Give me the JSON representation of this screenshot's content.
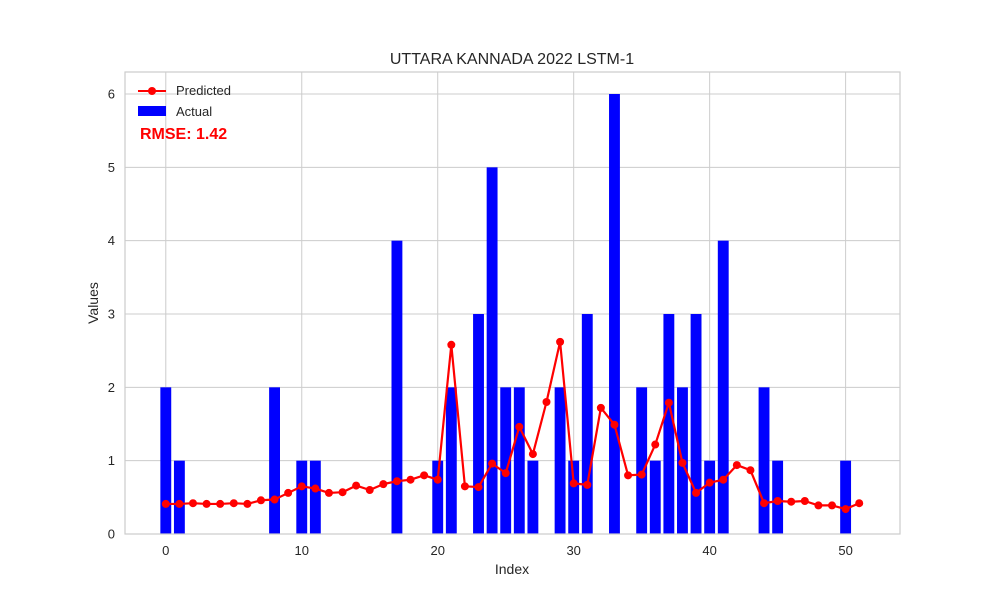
{
  "chart_data": {
    "type": "bar",
    "title": "UTTARA KANNADA 2022 LSTM-1",
    "xlabel": "Index",
    "ylabel": "Values",
    "xlim": [
      -3,
      54
    ],
    "ylim": [
      0,
      6.3
    ],
    "xticks": [
      0,
      10,
      20,
      30,
      40,
      50
    ],
    "yticks": [
      0,
      1,
      2,
      3,
      4,
      5,
      6
    ],
    "grid": true,
    "legend_position": "top-left",
    "annotation": "RMSE: 1.42",
    "x": [
      0,
      1,
      2,
      3,
      4,
      5,
      6,
      7,
      8,
      9,
      10,
      11,
      12,
      13,
      14,
      15,
      16,
      17,
      18,
      19,
      20,
      21,
      22,
      23,
      24,
      25,
      26,
      27,
      28,
      29,
      30,
      31,
      32,
      33,
      34,
      35,
      36,
      37,
      38,
      39,
      40,
      41,
      42,
      43,
      44,
      45,
      46,
      47,
      48,
      49,
      50,
      51
    ],
    "series": [
      {
        "name": "Predicted",
        "kind": "line",
        "color": "#ff0000",
        "values": [
          0.41,
          0.41,
          0.42,
          0.41,
          0.41,
          0.42,
          0.41,
          0.46,
          0.47,
          0.56,
          0.65,
          0.62,
          0.56,
          0.57,
          0.66,
          0.6,
          0.68,
          0.72,
          0.74,
          0.8,
          0.74,
          2.58,
          0.65,
          0.64,
          0.96,
          0.83,
          1.46,
          1.09,
          1.8,
          2.62,
          0.69,
          0.67,
          1.72,
          1.49,
          0.8,
          0.81,
          1.22,
          1.79,
          0.97,
          0.56,
          0.7,
          0.74,
          0.94,
          0.87,
          0.42,
          0.45,
          0.44,
          0.45,
          0.39,
          0.39,
          0.34,
          0.42
        ]
      },
      {
        "name": "Actual",
        "kind": "bar",
        "color": "#0000ff",
        "values": [
          2,
          1,
          0,
          0,
          0,
          0,
          0,
          0,
          2,
          0,
          1,
          1,
          0,
          0,
          0,
          0,
          0,
          4,
          0,
          0,
          1,
          2,
          0,
          3,
          5,
          2,
          2,
          1,
          0,
          2,
          1,
          3,
          0,
          6,
          0,
          2,
          1,
          3,
          2,
          3,
          1,
          4,
          0,
          0,
          2,
          1,
          0,
          0,
          0,
          0,
          1,
          0
        ]
      }
    ]
  }
}
